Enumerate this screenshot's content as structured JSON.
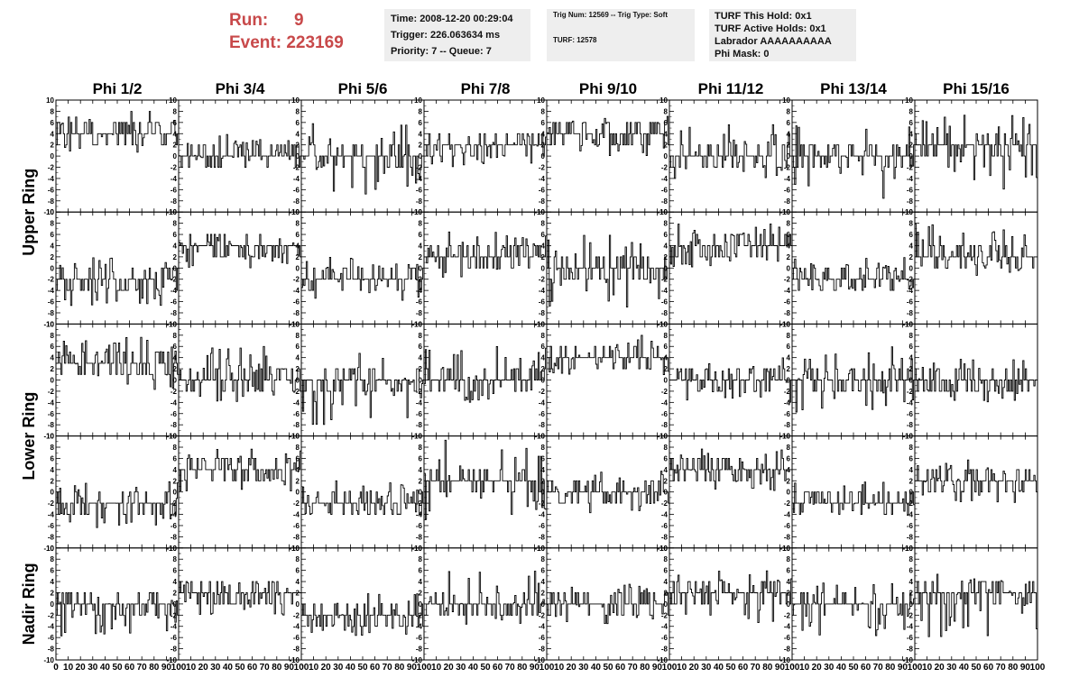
{
  "run": {
    "run_label": "Run:",
    "run_value": "9",
    "event_label": "Event:",
    "event_value": "223169"
  },
  "info_boxes": {
    "timing": {
      "time": "Time: 2008-12-20 00:29:04",
      "trigger": "Trigger: 226.063634 ms",
      "priority": "Priority: 7 -- Queue: 7"
    },
    "trig": {
      "line1": "Trig Num: 12569 -- Trig Type: Soft",
      "line2": "TURF: 12578"
    },
    "turf": {
      "this_hold": "TURF This Hold: 0x1",
      "active_holds": "TURF Active Holds: 0x1",
      "labrador": "Labrador AAAAAAAAAA",
      "phi_mask": "Phi Mask: 0"
    }
  },
  "colors": {
    "run_text": "#c8494a",
    "info_bg": "#eeeeee",
    "trace": "#000000"
  },
  "chart_data": {
    "type": "line",
    "column_titles": [
      "Phi 1/2",
      "Phi 3/4",
      "Phi 5/6",
      "Phi 7/8",
      "Phi 9/10",
      "Phi 11/12",
      "Phi 13/14",
      "Phi 15/16"
    ],
    "row_titles": [
      "Upper Ring",
      "Lower Ring",
      "Nadir Ring"
    ],
    "panel_rows": 5,
    "panel_cols": 8,
    "xlim": [
      0,
      100
    ],
    "ylim": [
      -10,
      10
    ],
    "x_ticks": [
      0,
      10,
      20,
      30,
      40,
      50,
      60,
      70,
      80,
      90,
      100
    ],
    "y_ticks": [
      -10,
      -8,
      -6,
      -4,
      -2,
      0,
      2,
      4,
      6,
      8,
      10
    ],
    "samples": 100,
    "panels": [
      [
        {
          "base": 4,
          "lo": 0,
          "hi": 8
        },
        {
          "base": 0,
          "lo": -2,
          "hi": 4
        },
        {
          "base": 0,
          "lo": -7,
          "hi": 6
        },
        {
          "base": 2,
          "lo": -2,
          "hi": 4
        },
        {
          "base": 4,
          "lo": 0,
          "hi": 8
        },
        {
          "base": 0,
          "lo": -4,
          "hi": 6
        },
        {
          "base": 0,
          "lo": -8,
          "hi": 6
        },
        {
          "base": 2,
          "lo": -6,
          "hi": 8
        }
      ],
      [
        {
          "base": -2,
          "lo": -7,
          "hi": 2
        },
        {
          "base": 4,
          "lo": 0,
          "hi": 6
        },
        {
          "base": -2,
          "lo": -6,
          "hi": 2
        },
        {
          "base": 2,
          "lo": -2,
          "hi": 7
        },
        {
          "base": 0,
          "lo": -7,
          "hi": 6
        },
        {
          "base": 4,
          "lo": 0,
          "hi": 8
        },
        {
          "base": -2,
          "lo": -4,
          "hi": 2
        },
        {
          "base": 2,
          "lo": -2,
          "hi": 8
        }
      ],
      [
        {
          "base": 3,
          "lo": -2,
          "hi": 8
        },
        {
          "base": 0,
          "lo": -4,
          "hi": 6
        },
        {
          "base": 0,
          "lo": -8,
          "hi": 6
        },
        {
          "base": 0,
          "lo": -4,
          "hi": 6
        },
        {
          "base": 4,
          "lo": 0,
          "hi": 8
        },
        {
          "base": 0,
          "lo": -4,
          "hi": 4
        },
        {
          "base": 0,
          "lo": -6,
          "hi": 6
        },
        {
          "base": 0,
          "lo": -4,
          "hi": 4
        }
      ],
      [
        {
          "base": -2,
          "lo": -7,
          "hi": 4
        },
        {
          "base": 4,
          "lo": 0,
          "hi": 8
        },
        {
          "base": -2,
          "lo": -4,
          "hi": 2
        },
        {
          "base": 2,
          "lo": -6,
          "hi": 10
        },
        {
          "base": 0,
          "lo": -4,
          "hi": 4
        },
        {
          "base": 4,
          "lo": 0,
          "hi": 8
        },
        {
          "base": -2,
          "lo": -4,
          "hi": 2
        },
        {
          "base": 2,
          "lo": -2,
          "hi": 6
        }
      ],
      [
        {
          "base": 0,
          "lo": -6,
          "hi": 2
        },
        {
          "base": 2,
          "lo": -2,
          "hi": 4
        },
        {
          "base": -2,
          "lo": -6,
          "hi": 2
        },
        {
          "base": 0,
          "lo": -4,
          "hi": 6
        },
        {
          "base": 0,
          "lo": -4,
          "hi": 4
        },
        {
          "base": 2,
          "lo": -4,
          "hi": 6
        },
        {
          "base": 0,
          "lo": -6,
          "hi": 4
        },
        {
          "base": 2,
          "lo": -6,
          "hi": 6
        }
      ]
    ]
  }
}
